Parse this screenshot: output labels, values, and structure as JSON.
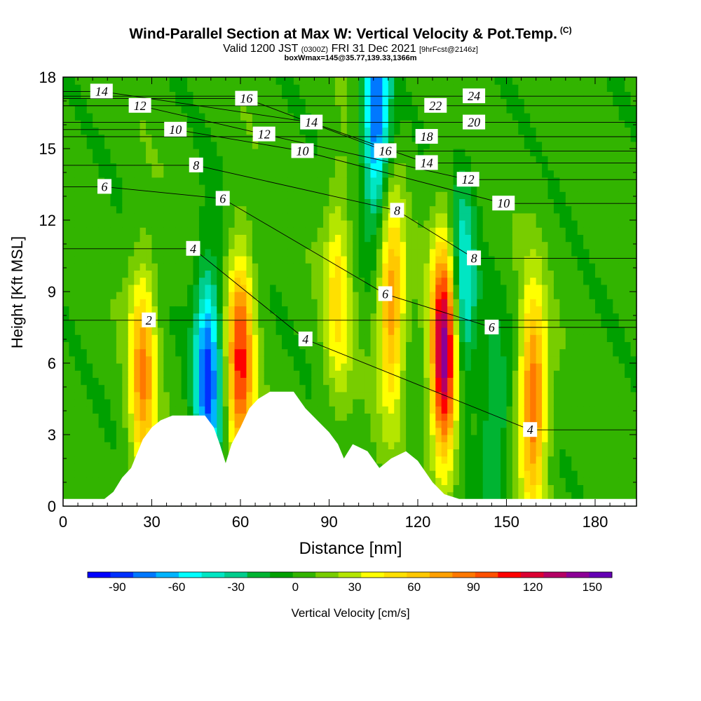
{
  "header": {
    "title": "Wind-Parallel Section at Max W: Vertical Velocity & Pot.Temp.",
    "copyright": "(C)",
    "valid_prefix": "Valid 1200 JST",
    "valid_utc": "(0300Z)",
    "valid_date": "FRI 31 Dec 2021",
    "forecast_info": "[9hrFcst@2146z]",
    "boxinfo": "boxWmax=145@35.77,139.33,1366m"
  },
  "colors": {
    "palette": [
      "#0000ff",
      "#0030ff",
      "#0078ff",
      "#00b4ff",
      "#00ffff",
      "#00e6c3",
      "#00cd8c",
      "#00b432",
      "#00a000",
      "#32b400",
      "#78cd00",
      "#b4e600",
      "#ffff00",
      "#ffe000",
      "#ffc800",
      "#ffa000",
      "#ff7800",
      "#ff5000",
      "#ff0000",
      "#dc0032",
      "#b40064",
      "#8c0096",
      "#6400b4"
    ],
    "contour": "#000000",
    "terrain": "#ffffff"
  },
  "chart_data": {
    "type": "heatmap",
    "xlabel": "Distance [nm]",
    "ylabel": "Height [Kft MSL]",
    "xlim": [
      0,
      194
    ],
    "ylim": [
      0,
      18
    ],
    "xticks": [
      0,
      30,
      60,
      90,
      120,
      150,
      180
    ],
    "yticks": [
      0,
      3,
      6,
      9,
      12,
      15,
      18
    ],
    "color_variable": "Vertical Velocity [cm/s]",
    "colorbar_range": [
      -105,
      160
    ],
    "colorbar_ticks": [
      -90,
      -60,
      -30,
      0,
      30,
      60,
      90,
      120,
      150
    ],
    "updrafts": [
      {
        "x": 27,
        "z": 5.5,
        "w": 75
      },
      {
        "x": 60,
        "z": 6.0,
        "w": 100
      },
      {
        "x": 93,
        "z": 9.0,
        "w": 45
      },
      {
        "x": 111,
        "z": 8.5,
        "w": 75
      },
      {
        "x": 129,
        "z": 6.5,
        "w": 145
      },
      {
        "x": 159,
        "z": 4.5,
        "w": 90
      }
    ],
    "downdrafts": [
      {
        "x": 49,
        "z": 5.5,
        "w": -90
      },
      {
        "x": 106,
        "z": 16.5,
        "w": -90
      },
      {
        "x": 135,
        "z": 9.0,
        "w": -60
      },
      {
        "x": 146,
        "z": 3.0,
        "w": -35
      }
    ],
    "terrain": [
      [
        0,
        0.3
      ],
      [
        14,
        0.3
      ],
      [
        17,
        0.6
      ],
      [
        20,
        1.2
      ],
      [
        23,
        1.6
      ],
      [
        27,
        2.8
      ],
      [
        30,
        3.3
      ],
      [
        33,
        3.6
      ],
      [
        37,
        3.8
      ],
      [
        48,
        3.8
      ],
      [
        51,
        3.3
      ],
      [
        53,
        2.6
      ],
      [
        55,
        1.8
      ],
      [
        57,
        2.6
      ],
      [
        60,
        3.3
      ],
      [
        63,
        4.1
      ],
      [
        66,
        4.5
      ],
      [
        70,
        4.8
      ],
      [
        78,
        4.8
      ],
      [
        82,
        4.1
      ],
      [
        86,
        3.6
      ],
      [
        90,
        3.1
      ],
      [
        93,
        2.6
      ],
      [
        95,
        2.0
      ],
      [
        98,
        2.6
      ],
      [
        103,
        2.3
      ],
      [
        107,
        1.6
      ],
      [
        111,
        2.0
      ],
      [
        116,
        2.3
      ],
      [
        120,
        1.9
      ],
      [
        125,
        1.0
      ],
      [
        129,
        0.5
      ],
      [
        134,
        0.3
      ],
      [
        194,
        0.3
      ]
    ],
    "theta_labels": [
      {
        "text": "14",
        "x": 13,
        "z": 17.4
      },
      {
        "text": "12",
        "x": 26,
        "z": 16.8
      },
      {
        "text": "10",
        "x": 38,
        "z": 15.8
      },
      {
        "text": "8",
        "x": 45,
        "z": 14.3
      },
      {
        "text": "6",
        "x": 14,
        "z": 13.4
      },
      {
        "text": "4",
        "x": 44,
        "z": 10.8
      },
      {
        "text": "2",
        "x": 29,
        "z": 7.8
      },
      {
        "text": "16",
        "x": 62,
        "z": 17.1
      },
      {
        "text": "12",
        "x": 68,
        "z": 15.6
      },
      {
        "text": "6",
        "x": 54,
        "z": 12.9
      },
      {
        "text": "14",
        "x": 84,
        "z": 16.1
      },
      {
        "text": "10",
        "x": 81,
        "z": 14.9
      },
      {
        "text": "4",
        "x": 82,
        "z": 7.0
      },
      {
        "text": "16",
        "x": 109,
        "z": 14.9
      },
      {
        "text": "8",
        "x": 113,
        "z": 12.4
      },
      {
        "text": "6",
        "x": 109,
        "z": 8.9
      },
      {
        "text": "18",
        "x": 123,
        "z": 15.5
      },
      {
        "text": "14",
        "x": 123,
        "z": 14.4
      },
      {
        "text": "22",
        "x": 126,
        "z": 16.8
      },
      {
        "text": "24",
        "x": 139,
        "z": 17.2
      },
      {
        "text": "20",
        "x": 139,
        "z": 16.1
      },
      {
        "text": "12",
        "x": 137,
        "z": 13.7
      },
      {
        "text": "10",
        "x": 149,
        "z": 12.7
      },
      {
        "text": "8",
        "x": 139,
        "z": 10.4
      },
      {
        "text": "6",
        "x": 145,
        "z": 7.5
      },
      {
        "text": "4",
        "x": 158,
        "z": 3.2
      }
    ]
  }
}
